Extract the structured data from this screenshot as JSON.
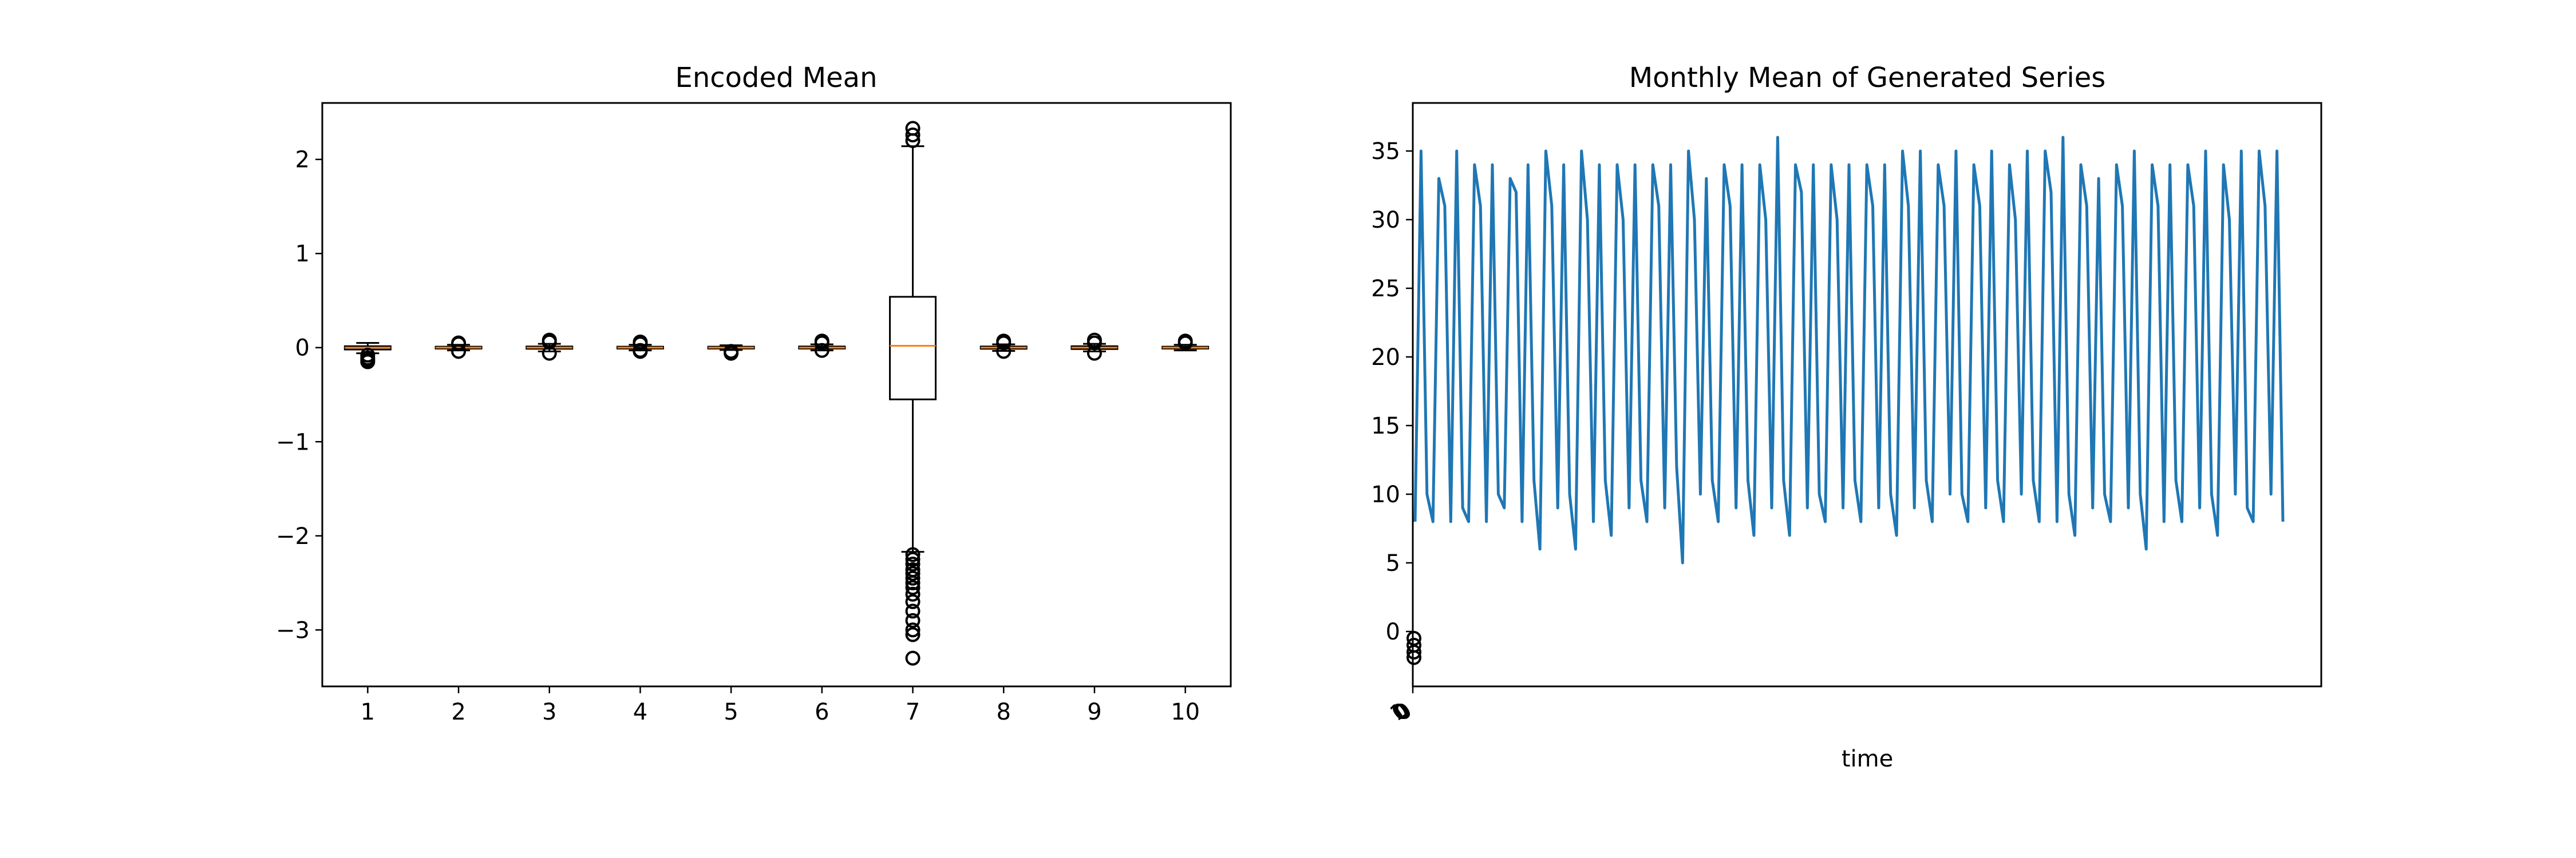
{
  "figure": {
    "colors": {
      "box": "#000000",
      "median": "#ff7f0e",
      "line": "#1f77b4",
      "axes": "#000000",
      "background": "#ffffff"
    }
  },
  "chart_data": [
    {
      "type": "box",
      "title": "Encoded Mean",
      "xlabel": "",
      "ylabel": "",
      "ylim": [
        -3.6,
        2.6
      ],
      "yticks": [
        -3,
        -2,
        -1,
        0,
        1,
        2
      ],
      "categories": [
        "1",
        "2",
        "3",
        "4",
        "5",
        "6",
        "7",
        "8",
        "9",
        "10"
      ],
      "boxes": [
        {
          "label": "1",
          "q1": -0.02,
          "median": 0.0,
          "q3": 0.015,
          "whisker_low": -0.06,
          "whisker_high": 0.05,
          "outliers": [
            -0.08,
            -0.11,
            -0.13,
            -0.15
          ]
        },
        {
          "label": "2",
          "q1": -0.01,
          "median": 0.0,
          "q3": 0.01,
          "whisker_low": -0.03,
          "whisker_high": 0.03,
          "outliers": [
            0.04,
            0.05,
            -0.04
          ]
        },
        {
          "label": "3",
          "q1": -0.012,
          "median": 0.0,
          "q3": 0.012,
          "whisker_low": -0.04,
          "whisker_high": 0.04,
          "outliers": [
            0.06,
            0.08,
            -0.06
          ]
        },
        {
          "label": "4",
          "q1": -0.01,
          "median": 0.0,
          "q3": 0.01,
          "whisker_low": -0.03,
          "whisker_high": 0.03,
          "outliers": [
            0.04,
            0.05,
            0.06,
            -0.03,
            -0.04
          ]
        },
        {
          "label": "5",
          "q1": -0.01,
          "median": 0.0,
          "q3": 0.01,
          "whisker_low": -0.025,
          "whisker_high": 0.025,
          "outliers": [
            -0.04,
            -0.06
          ]
        },
        {
          "label": "6",
          "q1": -0.01,
          "median": 0.0,
          "q3": 0.012,
          "whisker_low": -0.03,
          "whisker_high": 0.035,
          "outliers": [
            0.05,
            0.07,
            -0.03
          ]
        },
        {
          "label": "7",
          "q1": -0.55,
          "median": 0.02,
          "q3": 0.54,
          "whisker_low": -2.17,
          "whisker_high": 2.14,
          "outliers": [
            -2.2,
            -2.25,
            -2.3,
            -2.36,
            -2.4,
            -2.45,
            -2.5,
            -2.55,
            -2.62,
            -2.7,
            -2.8,
            -2.9,
            -3.0,
            -3.05,
            -3.3,
            2.2,
            2.26,
            2.33
          ]
        },
        {
          "label": "8",
          "q1": -0.012,
          "median": 0.0,
          "q3": 0.012,
          "whisker_low": -0.035,
          "whisker_high": 0.035,
          "outliers": [
            0.05,
            0.07,
            -0.04
          ]
        },
        {
          "label": "9",
          "q1": -0.015,
          "median": 0.0,
          "q3": 0.015,
          "whisker_low": -0.04,
          "whisker_high": 0.04,
          "outliers": [
            0.05,
            0.08,
            -0.06
          ]
        },
        {
          "label": "10",
          "q1": -0.01,
          "median": 0.0,
          "q3": 0.01,
          "whisker_low": -0.03,
          "whisker_high": 0.03,
          "outliers": [
            0.05,
            0.07
          ]
        }
      ],
      "grid": false
    },
    {
      "type": "line",
      "title": "Monthly Mean of Generated Series",
      "xlabel": "time",
      "ylabel": "",
      "ylim": [
        -4,
        38.5
      ],
      "yticks": [
        0,
        5,
        10,
        15,
        20,
        25,
        30,
        35
      ],
      "xtick_labels": [
        "1"
      ],
      "x_month_index_start": 1,
      "grid": false,
      "series": [
        {
          "values": [
            8,
            35,
            10,
            8,
            33,
            31,
            8,
            35,
            9,
            8,
            34,
            31,
            8,
            34,
            10,
            9,
            33,
            32,
            8,
            34,
            11,
            6,
            35,
            31,
            9,
            34,
            10,
            6,
            35,
            30,
            8,
            34,
            11,
            7,
            34,
            30,
            9,
            34,
            11,
            8,
            34,
            31,
            9,
            34,
            12,
            5,
            35,
            30,
            10,
            33,
            11,
            8,
            34,
            31,
            9,
            34,
            11,
            7,
            34,
            30,
            9,
            36,
            11,
            7,
            34,
            32,
            9,
            34,
            10,
            8,
            34,
            30,
            9,
            34,
            11,
            8,
            34,
            31,
            9,
            34,
            10,
            7,
            35,
            31,
            9,
            35,
            11,
            8,
            34,
            31,
            10,
            35,
            10,
            8,
            34,
            31,
            9,
            35,
            11,
            8,
            34,
            30,
            10,
            35,
            11,
            8,
            35,
            32,
            8,
            36,
            10,
            7,
            34,
            31,
            9,
            33,
            10,
            8,
            34,
            31,
            9,
            35,
            10,
            6,
            34,
            31,
            8,
            34,
            11,
            8,
            34,
            31,
            9,
            35,
            10,
            7,
            34,
            30,
            10,
            35,
            9,
            8,
            35,
            31,
            10,
            35,
            8
          ]
        }
      ],
      "markers": [
        {
          "x": 0,
          "y": -0.5
        },
        {
          "x": 0,
          "y": -1.0
        },
        {
          "x": 0,
          "y": -1.5
        },
        {
          "x": 0,
          "y": -1.9
        }
      ]
    }
  ]
}
